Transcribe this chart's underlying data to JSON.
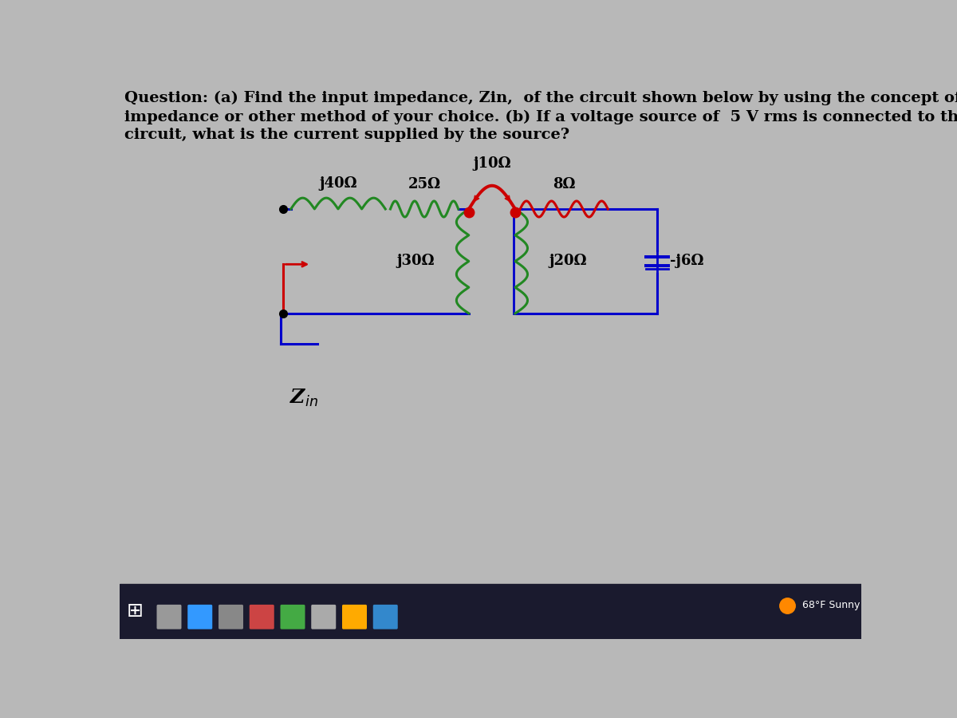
{
  "question_text_line1": "Question: (a) Find the input impedance, Zin,  of the circuit shown below by using the concept of reflected",
  "question_text_line2": "impedance or other method of your choice. (b) If a voltage source of  5 V rms is connected to the input of the",
  "question_text_line3": "circuit, what is the current supplied by the source?",
  "bg_color": "#b8b8b8",
  "circuit_color_blue": "#0000cc",
  "circuit_color_red": "#cc0000",
  "circuit_color_green": "#228822",
  "text_color": "#000000",
  "Zin_label": "Z$_{in}$",
  "j40_label": "j40Ω",
  "j25_label": "25Ω",
  "j10_label": "j10Ω",
  "j8_label": "8Ω",
  "j30_label": "j30Ω",
  "j20_label": "j20Ω",
  "jm6_label": "-j6Ω",
  "title_fontsize": 14,
  "label_fontsize": 13
}
